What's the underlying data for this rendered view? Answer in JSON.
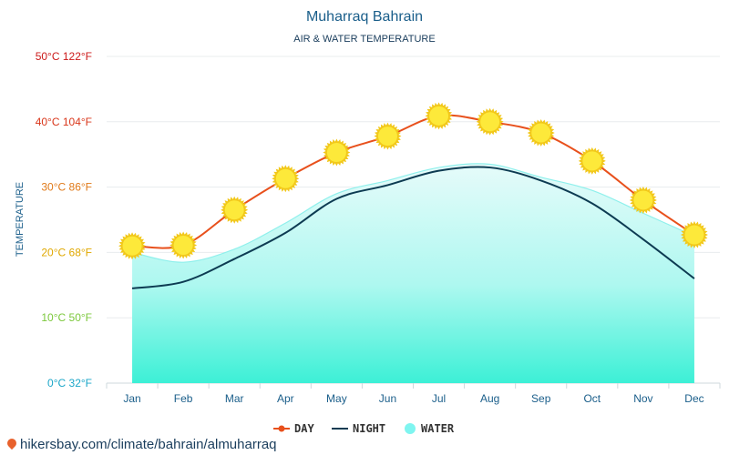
{
  "chart_data": {
    "type": "line",
    "title": "Muharraq Bahrain",
    "subtitle": "AIR & WATER TEMPERATURE",
    "ylabel": "TEMPERATURE",
    "categories": [
      "Jan",
      "Feb",
      "Mar",
      "Apr",
      "May",
      "Jun",
      "Jul",
      "Aug",
      "Sep",
      "Oct",
      "Nov",
      "Dec"
    ],
    "ylim": [
      0,
      50
    ],
    "yticks": [
      {
        "value": 0,
        "label": "0°C 32°F",
        "color": "#1aa6c8"
      },
      {
        "value": 10,
        "label": "10°C 50°F",
        "color": "#7cc83c"
      },
      {
        "value": 20,
        "label": "20°C 68°F",
        "color": "#e0a800"
      },
      {
        "value": 30,
        "label": "30°C 86°F",
        "color": "#e07a1a"
      },
      {
        "value": 40,
        "label": "40°C 104°F",
        "color": "#d9361a"
      },
      {
        "value": 50,
        "label": "50°C 122°F",
        "color": "#cc1a1a"
      }
    ],
    "grid": true,
    "legend_position": "bottom",
    "series": [
      {
        "name": "DAY",
        "color": "#e8501c",
        "values": [
          21,
          21.1,
          26.5,
          31.3,
          35.3,
          37.8,
          40.9,
          40,
          38.3,
          34,
          28,
          22.7
        ]
      },
      {
        "name": "NIGHT",
        "color": "#0d3b52",
        "values": [
          14.5,
          15.5,
          19,
          23,
          28.2,
          30.3,
          32.5,
          33,
          31,
          27.5,
          22,
          16
        ]
      },
      {
        "name": "WATER",
        "color": "#7ff5f0",
        "values": [
          20,
          18.5,
          20.5,
          24.5,
          29,
          31,
          33,
          33.5,
          31.5,
          29.5,
          26,
          22.5
        ]
      }
    ]
  },
  "source_text": "hikersbay.com/climate/bahrain/almuharraq"
}
